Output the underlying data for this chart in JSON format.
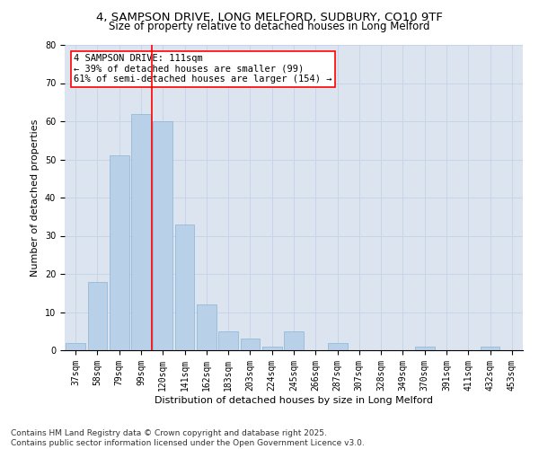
{
  "title": "4, SAMPSON DRIVE, LONG MELFORD, SUDBURY, CO10 9TF",
  "subtitle": "Size of property relative to detached houses in Long Melford",
  "xlabel": "Distribution of detached houses by size in Long Melford",
  "ylabel": "Number of detached properties",
  "categories": [
    "37sqm",
    "58sqm",
    "79sqm",
    "99sqm",
    "120sqm",
    "141sqm",
    "162sqm",
    "183sqm",
    "203sqm",
    "224sqm",
    "245sqm",
    "266sqm",
    "287sqm",
    "307sqm",
    "328sqm",
    "349sqm",
    "370sqm",
    "391sqm",
    "411sqm",
    "432sqm",
    "453sqm"
  ],
  "values": [
    2,
    18,
    51,
    62,
    60,
    33,
    12,
    5,
    3,
    1,
    5,
    0,
    2,
    0,
    0,
    0,
    1,
    0,
    0,
    1,
    0
  ],
  "bar_color": "#b8d0e8",
  "bar_edge_color": "#8ab4d4",
  "vline_x": 3.5,
  "vline_color": "red",
  "annotation_text": "4 SAMPSON DRIVE: 111sqm\n← 39% of detached houses are smaller (99)\n61% of semi-detached houses are larger (154) →",
  "annotation_box_color": "white",
  "annotation_box_edge_color": "red",
  "ylim": [
    0,
    80
  ],
  "yticks": [
    0,
    10,
    20,
    30,
    40,
    50,
    60,
    70,
    80
  ],
  "grid_color": "#c8d4e8",
  "background_color": "#dce4f0",
  "footer_text": "Contains HM Land Registry data © Crown copyright and database right 2025.\nContains public sector information licensed under the Open Government Licence v3.0.",
  "title_fontsize": 9.5,
  "subtitle_fontsize": 8.5,
  "axis_label_fontsize": 8,
  "tick_fontsize": 7,
  "annotation_fontsize": 7.5,
  "footer_fontsize": 6.5
}
